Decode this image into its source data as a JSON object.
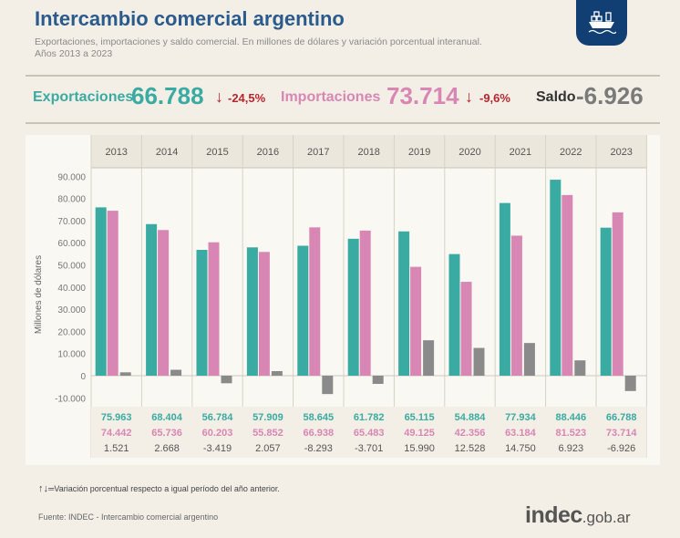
{
  "title": "Intercambio comercial argentino",
  "subtitle_line1": "Exportaciones, importaciones y saldo comercial. En millones de dólares y variación porcentual interanual.",
  "subtitle_line2": "Años 2013 a 2023",
  "colors": {
    "exports": "#3aaba2",
    "imports": "#d886b4",
    "balance": "#8a8a8a",
    "title": "#2b5a8c",
    "down_arrow": "#b8252f"
  },
  "kpis": {
    "exports_label": "Exportaciones",
    "exports_value": "66.788",
    "exports_arrow": "↓",
    "exports_variation": "-24,5%",
    "imports_label": "Importaciones",
    "imports_value": "73.714",
    "imports_arrow": "↓",
    "imports_variation": "-9,6%",
    "balance_label": "Saldo",
    "balance_value": "-6.926"
  },
  "legend_note": {
    "arrows": "↑↓",
    "text": "═Variación porcentual respecto a igual período del año anterior."
  },
  "source": "Fuente: INDEC  - Intercambio comercial argentino",
  "brand": {
    "main": "indec",
    "tld": ".gob.ar"
  },
  "chart_data": {
    "type": "bar",
    "ylabel": "Millones de dólares",
    "ylim": [
      -10000,
      95000
    ],
    "yticks": [
      -10000,
      0,
      10000,
      20000,
      30000,
      40000,
      50000,
      60000,
      70000,
      80000,
      90000
    ],
    "ytick_labels": [
      "-10.000",
      "0",
      "10.000",
      "20.000",
      "30.000",
      "40.000",
      "50.000",
      "60.000",
      "70.000",
      "80.000",
      "90.000"
    ],
    "categories": [
      "2013",
      "2014",
      "2015",
      "2016",
      "2017",
      "2018",
      "2019",
      "2020",
      "2021",
      "2022",
      "2023"
    ],
    "series": [
      {
        "name": "Exportaciones",
        "color": "#3aaba2",
        "values": [
          75963,
          68404,
          56784,
          57909,
          58645,
          61782,
          65115,
          54884,
          77934,
          88446,
          66788
        ],
        "labels": [
          "75.963",
          "68.404",
          "56.784",
          "57.909",
          "58.645",
          "61.782",
          "65.115",
          "54.884",
          "77.934",
          "88.446",
          "66.788"
        ]
      },
      {
        "name": "Importaciones",
        "color": "#d886b4",
        "values": [
          74442,
          65736,
          60203,
          55852,
          66938,
          65483,
          49125,
          42356,
          63184,
          81523,
          73714
        ],
        "labels": [
          "74.442",
          "65.736",
          "60.203",
          "55.852",
          "66.938",
          "65.483",
          "49.125",
          "42.356",
          "63.184",
          "81.523",
          "73.714"
        ]
      },
      {
        "name": "Saldo",
        "color": "#8a8a8a",
        "values": [
          1521,
          2668,
          -3419,
          2057,
          -8293,
          -3701,
          15990,
          12528,
          14750,
          6923,
          -6926
        ],
        "labels": [
          "1.521",
          "2.668",
          "-3.419",
          "2.057",
          "-8.293",
          "-3.701",
          "15.990",
          "12.528",
          "14.750",
          "6.923",
          "-6.926"
        ]
      }
    ]
  }
}
